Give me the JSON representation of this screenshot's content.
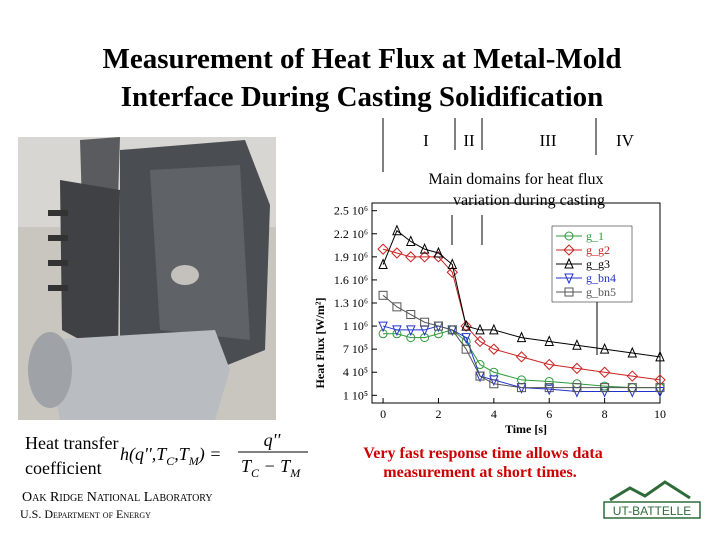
{
  "title": [
    "Measurement of Heat Flux at Metal-Mold",
    "Interface During Casting Solidification"
  ],
  "domains": {
    "labels": [
      "I",
      "II",
      "III",
      "IV"
    ],
    "caption": [
      "Main domains for heat flux",
      "variation during casting"
    ]
  },
  "chart_data": {
    "type": "line",
    "x_label": "Time [s]",
    "y_label": "Heat Flux [W/m²]",
    "x": [
      0,
      0.5,
      1,
      1.5,
      2,
      2.5,
      3,
      3.5,
      4,
      5,
      6,
      7,
      8,
      9,
      10
    ],
    "series": [
      {
        "name": "g_1",
        "color": "#2e9a3a",
        "marker": "circle",
        "values": [
          900000,
          900000,
          850000,
          850000,
          900000,
          950000,
          800000,
          500000,
          400000,
          300000,
          280000,
          250000,
          220000,
          200000,
          200000
        ]
      },
      {
        "name": "g_g2",
        "color": "#cc2222",
        "marker": "diamond",
        "values": [
          2000000,
          1950000,
          1900000,
          1900000,
          1900000,
          1700000,
          1000000,
          800000,
          700000,
          600000,
          500000,
          450000,
          400000,
          350000,
          300000
        ]
      },
      {
        "name": "g_g3",
        "color": "#000000",
        "marker": "triangle",
        "values": [
          1800000,
          2240000,
          2100000,
          2000000,
          1950000,
          1800000,
          1000000,
          950000,
          950000,
          850000,
          800000,
          750000,
          700000,
          650000,
          600000
        ]
      },
      {
        "name": "g_bn4",
        "color": "#2233cc",
        "marker": "triangle-down",
        "values": [
          1000000,
          950000,
          950000,
          950000,
          1000000,
          950000,
          850000,
          350000,
          300000,
          200000,
          180000,
          150000,
          150000,
          150000,
          150000
        ]
      },
      {
        "name": "g_bn5",
        "color": "#555555",
        "marker": "square",
        "values": [
          1400000,
          1250000,
          1150000,
          1050000,
          1000000,
          950000,
          700000,
          350000,
          250000,
          200000,
          200000,
          200000,
          200000,
          200000,
          200000
        ]
      }
    ],
    "xlim": [
      -0.4,
      10
    ],
    "xticks": [
      0,
      2,
      4,
      6,
      8,
      10
    ],
    "ylim": [
      0,
      2600000
    ],
    "yticks": [
      {
        "value": 100000,
        "label": "1 10⁵"
      },
      {
        "value": 400000,
        "label": "4 10⁵"
      },
      {
        "value": 700000,
        "label": "7 10⁵"
      },
      {
        "value": 1000000,
        "label": "1 10⁶"
      },
      {
        "value": 1300000,
        "label": "1.3 10⁶"
      },
      {
        "value": 1600000,
        "label": "1.6 10⁶"
      },
      {
        "value": 1900000,
        "label": "1.9 10⁶"
      },
      {
        "value": 2200000,
        "label": "2.2 10⁶"
      },
      {
        "value": 2500000,
        "label": "2.5 10⁶"
      }
    ],
    "grid": false
  },
  "formula": {
    "label": [
      "Heat transfer",
      "coefficient"
    ],
    "lhs": [
      "h(q'',T",
      "C",
      ",T",
      "M",
      ") ="
    ],
    "numerator": "q''",
    "denominator": [
      "T",
      "C",
      " − T",
      "M"
    ]
  },
  "note": [
    "Very fast response time allows data",
    "measurement at short times."
  ],
  "footer": {
    "lab": "Oak Ridge National Laboratory",
    "dept": "U.S. Department of Energy",
    "logo": "UT-BATTELLE"
  }
}
